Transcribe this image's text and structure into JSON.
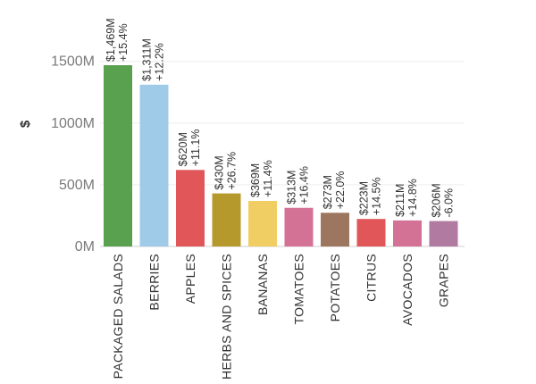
{
  "chart_data": {
    "type": "bar",
    "title": "",
    "xlabel": "",
    "ylabel": "$",
    "ylim": [
      0,
      1800
    ],
    "yticks": [
      0,
      500,
      1000,
      1500
    ],
    "ytick_labels": [
      "0M",
      "500M",
      "1000M",
      "1500M"
    ],
    "grid": true,
    "categories": [
      "PACKAGED SALADS",
      "BERRIES",
      "APPLES",
      "HERBS AND SPICES",
      "BANANAS",
      "TOMATOES",
      "POTATOES",
      "CITRUS",
      "AVOCADOS",
      "GRAPES"
    ],
    "values": [
      1469,
      1311,
      620,
      430,
      369,
      313,
      273,
      223,
      211,
      206
    ],
    "value_labels": [
      "$1,469M",
      "$1,311M",
      "$620M",
      "$430M",
      "$369M",
      "$313M",
      "$273M",
      "$223M",
      "$211M",
      "$206M"
    ],
    "change_labels": [
      "+15.4%",
      "+12.2%",
      "+11.1%",
      "+26.7%",
      "+11.4%",
      "+16.4%",
      "+22.0%",
      "+14.5%",
      "+14.8%",
      "-6.0%"
    ],
    "colors": [
      "#59a14f",
      "#a0cbe8",
      "#e15759",
      "#b6992d",
      "#f1ce63",
      "#d37295",
      "#9d7660",
      "#e15759",
      "#d37295",
      "#b07aa1"
    ]
  }
}
